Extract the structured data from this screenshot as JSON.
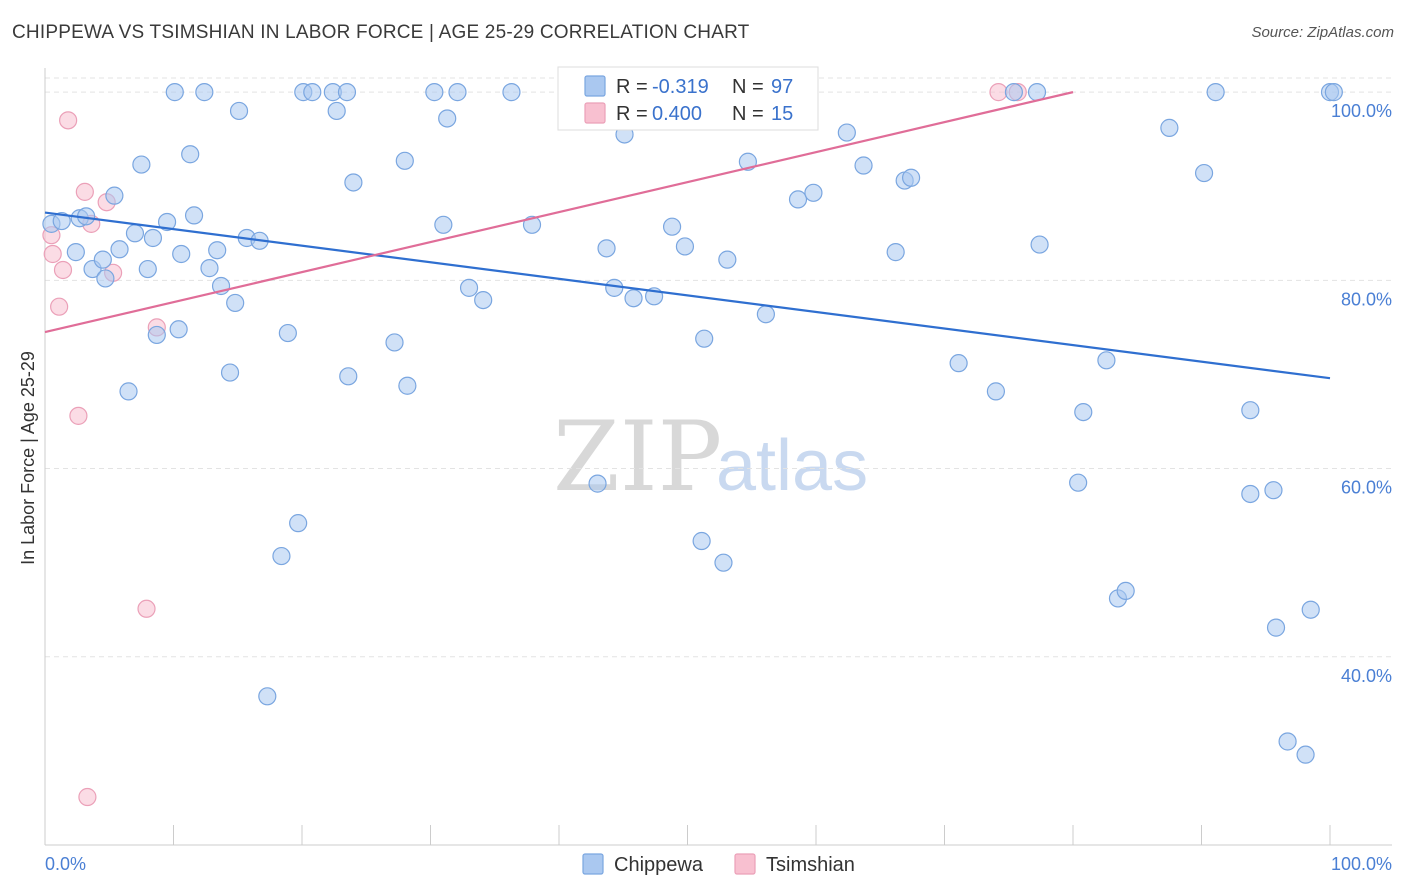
{
  "title": "CHIPPEWA VS TSIMSHIAN IN LABOR FORCE | AGE 25-29 CORRELATION CHART",
  "source": "Source: ZipAtlas.com",
  "watermark": {
    "zip": "ZIP",
    "atlas": "atlas"
  },
  "colors": {
    "chippewa_fill": "#aac8f0",
    "chippewa_stroke": "#7aa6e0",
    "chippewa_line": "#2f6fd0",
    "tsimshian_fill": "#f8c0d0",
    "tsimshian_stroke": "#eba0b8",
    "tsimshian_line": "#e06d98",
    "tick_text": "#4a7fd4",
    "grid": "#e3e3e3"
  },
  "legend": {
    "rows": [
      {
        "r_label": "R = ",
        "r_value": "-0.319",
        "n_label": "N = ",
        "n_value": "97",
        "series": "chippewa"
      },
      {
        "r_label": "R = ",
        "r_value": "0.400",
        "n_label": "N = ",
        "n_value": "15",
        "series": "tsimshian"
      }
    ]
  },
  "chart_data": {
    "type": "scatter",
    "title": "CHIPPEWA VS TSIMSHIAN IN LABOR FORCE | AGE 25-29 CORRELATION CHART",
    "xlabel": "",
    "ylabel": "In Labor Force | Age 25-29",
    "xlim": [
      0,
      100
    ],
    "ylim": [
      20,
      101.5
    ],
    "x_tick_labels": [
      "0.0%",
      "100.0%"
    ],
    "y_ticks": [
      {
        "value": 40,
        "label": "40.0%"
      },
      {
        "value": 60,
        "label": "60.0%"
      },
      {
        "value": 80,
        "label": "80.0%"
      },
      {
        "value": 100,
        "label": "100.0%"
      }
    ],
    "grid": true,
    "legend_position": "top-center",
    "series": [
      {
        "name": "Chippewa",
        "points": [
          [
            0.5,
            86
          ],
          [
            1.3,
            86.3
          ],
          [
            2.4,
            83
          ],
          [
            2.7,
            86.6
          ],
          [
            3.2,
            86.8
          ],
          [
            3.7,
            81.2
          ],
          [
            4.5,
            82.2
          ],
          [
            4.7,
            80.2
          ],
          [
            5.4,
            89
          ],
          [
            5.8,
            83.3
          ],
          [
            6.5,
            68.2
          ],
          [
            7,
            85
          ],
          [
            7.5,
            92.3
          ],
          [
            8,
            81.2
          ],
          [
            8.4,
            84.5
          ],
          [
            8.7,
            74.2
          ],
          [
            9.5,
            86.2
          ],
          [
            10.1,
            100
          ],
          [
            10.4,
            74.8
          ],
          [
            10.6,
            82.8
          ],
          [
            11.3,
            93.4
          ],
          [
            11.6,
            86.9
          ],
          [
            12.4,
            100
          ],
          [
            12.8,
            81.3
          ],
          [
            13.4,
            83.2
          ],
          [
            13.7,
            79.4
          ],
          [
            14.4,
            70.2
          ],
          [
            14.8,
            77.6
          ],
          [
            15.1,
            98
          ],
          [
            15.7,
            84.5
          ],
          [
            16.7,
            84.2
          ],
          [
            17.3,
            35.8
          ],
          [
            18.4,
            50.7
          ],
          [
            18.9,
            74.4
          ],
          [
            19.7,
            54.2
          ],
          [
            20.1,
            100
          ],
          [
            20.8,
            100
          ],
          [
            22.4,
            100
          ],
          [
            22.7,
            98
          ],
          [
            23.5,
            100
          ],
          [
            23.6,
            69.8
          ],
          [
            24,
            90.4
          ],
          [
            27.2,
            73.4
          ],
          [
            28,
            92.7
          ],
          [
            28.2,
            68.8
          ],
          [
            30.3,
            100
          ],
          [
            31,
            85.9
          ],
          [
            31.3,
            97.2
          ],
          [
            32.1,
            100
          ],
          [
            33,
            79.2
          ],
          [
            34.1,
            77.9
          ],
          [
            36.3,
            100
          ],
          [
            37.9,
            85.9
          ],
          [
            43,
            58.4
          ],
          [
            43.7,
            83.4
          ],
          [
            44.3,
            79.2
          ],
          [
            45.1,
            95.5
          ],
          [
            45.8,
            78.1
          ],
          [
            47.4,
            78.3
          ],
          [
            48.8,
            85.7
          ],
          [
            49.8,
            83.6
          ],
          [
            51.1,
            52.3
          ],
          [
            51.3,
            73.8
          ],
          [
            52.8,
            50
          ],
          [
            53.1,
            82.2
          ],
          [
            54,
            100
          ],
          [
            54.7,
            92.6
          ],
          [
            56.1,
            76.4
          ],
          [
            58.6,
            88.6
          ],
          [
            59.8,
            89.3
          ],
          [
            62.4,
            95.7
          ],
          [
            63.7,
            92.2
          ],
          [
            66.2,
            83
          ],
          [
            66.9,
            90.6
          ],
          [
            67.4,
            90.9
          ],
          [
            71.1,
            71.2
          ],
          [
            74,
            68.2
          ],
          [
            75.4,
            100
          ],
          [
            77.2,
            100
          ],
          [
            77.4,
            83.8
          ],
          [
            80.4,
            58.5
          ],
          [
            80.8,
            66
          ],
          [
            82.6,
            71.5
          ],
          [
            83.5,
            46.2
          ],
          [
            84.1,
            47
          ],
          [
            87.5,
            96.2
          ],
          [
            90.2,
            91.4
          ],
          [
            91.1,
            100
          ],
          [
            93.8,
            66.2
          ],
          [
            93.8,
            57.3
          ],
          [
            95.6,
            57.7
          ],
          [
            95.8,
            43.1
          ],
          [
            96.7,
            31
          ],
          [
            98.1,
            29.6
          ],
          [
            98.5,
            45
          ],
          [
            100,
            100
          ],
          [
            100.3,
            100
          ]
        ]
      },
      {
        "name": "Tsimshian",
        "points": [
          [
            0.5,
            84.8
          ],
          [
            0.6,
            82.8
          ],
          [
            1.1,
            77.2
          ],
          [
            1.4,
            81.1
          ],
          [
            1.8,
            97
          ],
          [
            2.6,
            65.6
          ],
          [
            3.1,
            89.4
          ],
          [
            3.3,
            25.1
          ],
          [
            3.6,
            86
          ],
          [
            4.8,
            88.3
          ],
          [
            5.3,
            80.8
          ],
          [
            7.9,
            45.1
          ],
          [
            8.7,
            75
          ],
          [
            74.2,
            100
          ],
          [
            75.7,
            100
          ]
        ]
      }
    ],
    "trend_lines": [
      {
        "series": "Chippewa",
        "x": [
          0,
          100
        ],
        "y": [
          87.2,
          69.6
        ]
      },
      {
        "series": "Tsimshian",
        "x": [
          0,
          80
        ],
        "y": [
          74.5,
          100
        ]
      }
    ]
  },
  "bottom_legend": [
    {
      "label": "Chippewa",
      "series": "chippewa"
    },
    {
      "label": "Tsimshian",
      "series": "tsimshian"
    }
  ]
}
